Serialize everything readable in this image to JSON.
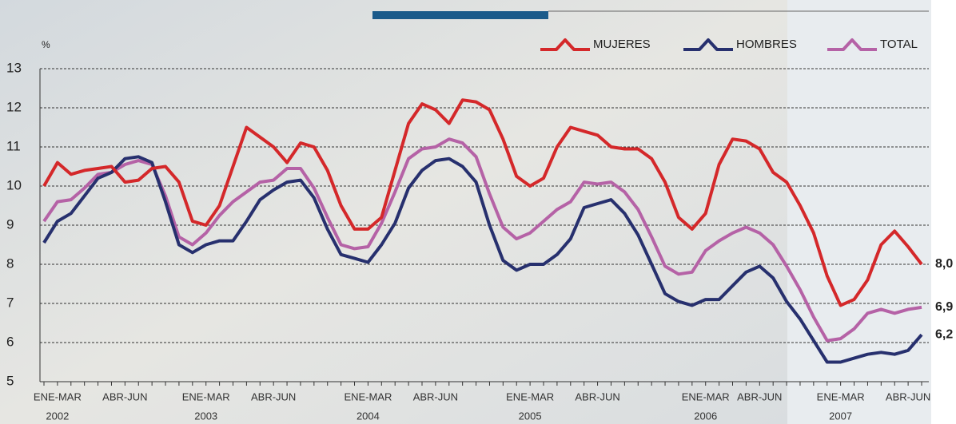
{
  "chart_data": {
    "type": "line",
    "y_unit": "%",
    "ylim": [
      5,
      13
    ],
    "yticks": [
      5,
      6,
      7,
      8,
      9,
      10,
      11,
      12,
      13
    ],
    "grid": true,
    "legend": "top-right",
    "categories": [
      null,
      "ENE-MAR",
      null,
      null,
      null,
      null,
      "ABR-JUN",
      null,
      null,
      null,
      null,
      null,
      "ENE-MAR",
      null,
      null,
      null,
      null,
      "ABR-JUN",
      null,
      null,
      null,
      null,
      null,
      null,
      "ENE-MAR",
      null,
      null,
      null,
      null,
      "ABR-JUN",
      null,
      null,
      null,
      null,
      null,
      null,
      "ENE-MAR",
      null,
      null,
      null,
      null,
      "ABR-JUN",
      null,
      null,
      null,
      null,
      null,
      null,
      null,
      "ENE-MAR",
      null,
      null,
      null,
      "ABR-JUN",
      null,
      null,
      null,
      null,
      null,
      "ENE-MAR",
      null,
      null,
      null,
      null,
      "ABR-JUN",
      null
    ],
    "category_years": [
      null,
      "2002",
      null,
      null,
      null,
      null,
      null,
      null,
      null,
      null,
      null,
      null,
      "2003",
      null,
      null,
      null,
      null,
      null,
      null,
      null,
      null,
      null,
      null,
      null,
      "2004",
      null,
      null,
      null,
      null,
      null,
      null,
      null,
      null,
      null,
      null,
      null,
      "2005",
      null,
      null,
      null,
      null,
      null,
      null,
      null,
      null,
      null,
      null,
      null,
      null,
      "2006",
      null,
      null,
      null,
      null,
      null,
      null,
      null,
      null,
      null,
      "2007",
      null,
      null,
      null,
      null,
      null,
      null
    ],
    "series": [
      {
        "name": "TOTAL",
        "color": "#b562a6",
        "end_label": "6,9",
        "values": [
          9.1,
          9.6,
          9.65,
          9.95,
          10.3,
          10.35,
          10.55,
          10.65,
          10.55,
          9.75,
          8.7,
          8.5,
          8.8,
          9.25,
          9.6,
          9.85,
          10.1,
          10.15,
          10.45,
          10.45,
          9.95,
          9.2,
          8.5,
          8.4,
          8.45,
          9.05,
          9.85,
          10.7,
          10.95,
          11.0,
          11.2,
          11.1,
          10.75,
          9.8,
          8.95,
          8.65,
          8.8,
          9.1,
          9.4,
          9.6,
          10.1,
          10.05,
          10.1,
          9.85,
          9.4,
          8.7,
          7.95,
          7.75,
          7.8,
          8.35,
          8.6,
          8.8,
          8.95,
          8.8,
          8.5,
          7.95,
          7.35,
          6.65,
          6.05,
          6.1,
          6.35,
          6.75,
          6.85,
          6.75,
          6.85,
          6.9
        ]
      },
      {
        "name": "HOMBRES",
        "color": "#27306e",
        "end_label": "6,2",
        "values": [
          8.55,
          9.1,
          9.3,
          9.75,
          10.2,
          10.35,
          10.7,
          10.75,
          10.6,
          9.6,
          8.5,
          8.3,
          8.5,
          8.6,
          8.6,
          9.1,
          9.65,
          9.9,
          10.1,
          10.15,
          9.7,
          8.9,
          8.25,
          8.15,
          8.05,
          8.5,
          9.05,
          9.95,
          10.4,
          10.65,
          10.7,
          10.5,
          10.1,
          9.0,
          8.1,
          7.85,
          8.0,
          8.0,
          8.25,
          8.65,
          9.45,
          9.55,
          9.65,
          9.3,
          8.75,
          8.0,
          7.25,
          7.05,
          6.95,
          7.1,
          7.1,
          7.45,
          7.8,
          7.95,
          7.65,
          7.05,
          6.6,
          6.05,
          5.5,
          5.5,
          5.6,
          5.7,
          5.75,
          5.7,
          5.8,
          6.2
        ]
      },
      {
        "name": "MUJERES",
        "color": "#d4282a",
        "end_label": "8,0",
        "values": [
          10.0,
          10.6,
          10.3,
          10.4,
          10.45,
          10.5,
          10.1,
          10.15,
          10.45,
          10.5,
          10.1,
          9.1,
          9.0,
          9.5,
          10.5,
          11.5,
          11.25,
          11.0,
          10.6,
          11.1,
          11.0,
          10.4,
          9.5,
          8.9,
          8.9,
          9.2,
          10.4,
          11.6,
          12.1,
          11.95,
          11.6,
          12.2,
          12.15,
          11.95,
          11.2,
          10.25,
          10.0,
          10.2,
          11.0,
          11.5,
          11.4,
          11.3,
          11.0,
          10.95,
          10.95,
          10.7,
          10.1,
          9.2,
          8.9,
          9.3,
          10.55,
          11.2,
          11.15,
          10.95,
          10.35,
          10.1,
          9.5,
          8.8,
          7.7,
          6.95,
          7.1,
          7.6,
          8.5,
          8.85,
          8.45,
          8.0
        ]
      }
    ]
  }
}
